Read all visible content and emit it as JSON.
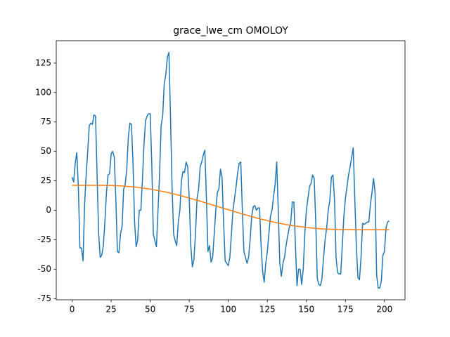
{
  "chart_data": {
    "type": "line",
    "title": "grace_lwe_cm OMOLOY",
    "x": [
      0,
      1,
      2,
      3,
      4,
      5,
      6,
      7,
      8,
      9,
      10,
      11,
      12,
      13,
      14,
      15,
      16,
      17,
      18,
      19,
      20,
      21,
      22,
      23,
      24,
      25,
      26,
      27,
      28,
      29,
      30,
      31,
      32,
      33,
      34,
      35,
      36,
      37,
      38,
      39,
      40,
      41,
      42,
      43,
      44,
      45,
      46,
      47,
      48,
      49,
      50,
      51,
      52,
      53,
      54,
      55,
      56,
      57,
      58,
      59,
      60,
      61,
      62,
      63,
      64,
      65,
      66,
      67,
      68,
      69,
      70,
      71,
      72,
      73,
      74,
      75,
      76,
      77,
      78,
      79,
      80,
      81,
      82,
      83,
      84,
      85,
      86,
      87,
      88,
      89,
      90,
      91,
      92,
      93,
      94,
      95,
      96,
      97,
      98,
      99,
      100,
      101,
      102,
      103,
      104,
      105,
      106,
      107,
      108,
      109,
      110,
      111,
      112,
      113,
      114,
      115,
      116,
      117,
      118,
      119,
      120,
      121,
      122,
      123,
      124,
      125,
      126,
      127,
      128,
      129,
      130,
      131,
      132,
      133,
      134,
      135,
      136,
      137,
      138,
      139,
      140,
      141,
      142,
      143,
      144,
      145,
      146,
      147,
      148,
      149,
      150,
      151,
      152,
      153,
      154,
      155,
      156,
      157,
      158,
      159,
      160,
      161,
      162,
      163,
      164,
      165,
      166,
      167,
      168,
      169,
      170,
      171,
      172,
      173,
      174,
      175,
      176,
      177,
      178,
      179,
      180,
      181,
      182,
      183,
      184,
      185,
      186,
      187,
      188,
      189,
      190,
      191,
      192,
      193,
      194,
      195,
      196,
      197,
      198,
      199,
      200,
      201,
      202,
      203
    ],
    "series": [
      {
        "color": "#1f77b4",
        "values": [
          28,
          24,
          40,
          49,
          20,
          -32,
          -32,
          -43,
          5,
          30,
          50,
          72,
          74,
          73,
          81,
          80,
          30,
          -20,
          -40,
          -38,
          -30,
          -10,
          15,
          30,
          31,
          48,
          50,
          45,
          10,
          -35,
          -36,
          -20,
          -14,
          18,
          22,
          35,
          62,
          74,
          73,
          40,
          -10,
          -31,
          -25,
          0,
          0,
          25,
          55,
          76,
          80,
          82,
          82,
          40,
          -20,
          -26,
          -31,
          0,
          30,
          72,
          80,
          108,
          115,
          130,
          134,
          80,
          20,
          -20,
          -26,
          -30,
          -10,
          0,
          25,
          33,
          32,
          41,
          37,
          10,
          -30,
          -48,
          -42,
          -20,
          10,
          18,
          37,
          41,
          47,
          51,
          10,
          -35,
          -30,
          -44,
          -40,
          -20,
          0,
          15,
          18,
          35,
          28,
          -10,
          -43,
          -45,
          -47,
          -40,
          -20,
          0,
          10,
          20,
          32,
          40,
          41,
          0,
          -35,
          -40,
          -45,
          -40,
          -25,
          -5,
          3,
          4,
          0,
          2,
          2,
          -30,
          -52,
          -61,
          -45,
          -35,
          -20,
          -5,
          0,
          12,
          22,
          41,
          0,
          -45,
          -56,
          -45,
          -40,
          -30,
          -22,
          -15,
          -10,
          7,
          7,
          -30,
          -64,
          -50,
          -50,
          -63,
          -50,
          -20,
          0,
          10,
          20,
          23,
          30,
          27,
          -10,
          -58,
          -63,
          -64,
          -58,
          -40,
          -25,
          -15,
          0,
          8,
          28,
          30,
          10,
          -40,
          -53,
          -54,
          -54,
          -30,
          -5,
          10,
          20,
          30,
          37,
          45,
          53,
          10,
          -30,
          -57,
          -59,
          -40,
          -11,
          -12,
          -11,
          -10,
          -10,
          5,
          15,
          27,
          15,
          -55,
          -66,
          -66,
          -60,
          -38,
          -35,
          -15,
          -10,
          -9
        ]
      },
      {
        "color": "#ff7f0e",
        "values": [
          21.2,
          21.2,
          21.2,
          21.2,
          21.2,
          21.2,
          21.2,
          21.2,
          21.2,
          21.2,
          21.2,
          21.2,
          21.2,
          21.2,
          21.2,
          21.2,
          21.2,
          21.2,
          21.2,
          21.2,
          21.2,
          21.2,
          21.1,
          21.1,
          21.1,
          21.0,
          21.0,
          21.0,
          20.9,
          20.9,
          20.8,
          20.7,
          20.6,
          20.5,
          20.4,
          20.3,
          20.2,
          20.1,
          20.0,
          19.9,
          19.8,
          19.6,
          19.4,
          19.3,
          19.1,
          18.9,
          18.7,
          18.5,
          18.4,
          18.2,
          18.0,
          17.8,
          17.5,
          17.3,
          17.0,
          16.8,
          16.5,
          16.3,
          16.0,
          15.8,
          15.5,
          15.2,
          14.9,
          14.5,
          14.2,
          13.9,
          13.6,
          13.3,
          12.9,
          12.6,
          12.3,
          11.9,
          11.5,
          11.2,
          10.8,
          10.4,
          10.0,
          9.6,
          9.2,
          8.9,
          8.5,
          8.1,
          7.7,
          7.3,
          6.9,
          6.5,
          6.1,
          5.7,
          5.3,
          4.9,
          4.5,
          4.1,
          3.7,
          3.3,
          2.9,
          2.5,
          2.1,
          1.7,
          1.3,
          0.9,
          0.5,
          0.1,
          -0.3,
          -0.7,
          -1.1,
          -1.5,
          -1.9,
          -2.3,
          -2.7,
          -3.1,
          -3.5,
          -3.9,
          -4.2,
          -4.6,
          -5.0,
          -5.4,
          -5.7,
          -6.1,
          -6.5,
          -6.8,
          -7.2,
          -7.5,
          -7.8,
          -8.1,
          -8.4,
          -8.8,
          -9.1,
          -9.4,
          -9.7,
          -10.0,
          -10.3,
          -10.6,
          -10.8,
          -11.1,
          -11.3,
          -11.6,
          -11.8,
          -12.1,
          -12.3,
          -12.6,
          -12.8,
          -13.0,
          -13.2,
          -13.4,
          -13.5,
          -13.7,
          -13.9,
          -14.1,
          -14.2,
          -14.4,
          -14.6,
          -14.7,
          -14.8,
          -15.0,
          -15.1,
          -15.2,
          -15.3,
          -15.4,
          -15.6,
          -15.7,
          -15.8,
          -15.9,
          -15.9,
          -16.0,
          -16.1,
          -16.1,
          -16.2,
          -16.2,
          -16.3,
          -16.3,
          -16.4,
          -16.4,
          -16.4,
          -16.4,
          -16.4,
          -16.4,
          -16.4,
          -16.4,
          -16.4,
          -16.4,
          -16.5,
          -16.5,
          -16.5,
          -16.5,
          -16.5,
          -16.5,
          -16.5,
          -16.5,
          -16.5,
          -16.5,
          -16.5,
          -16.5,
          -16.5,
          -16.5,
          -16.5,
          -16.5,
          -16.5,
          -16.5,
          -16.5,
          -16.5,
          -16.5,
          -16.5,
          -16.5,
          -16.5
        ]
      }
    ],
    "xlim": [
      -10.15,
      213.15
    ],
    "xticks": [
      0,
      25,
      50,
      75,
      100,
      125,
      150,
      175,
      200
    ],
    "ylim": [
      -76,
      144
    ],
    "yticks": [
      -75,
      -50,
      -25,
      0,
      25,
      50,
      75,
      100,
      125
    ]
  }
}
